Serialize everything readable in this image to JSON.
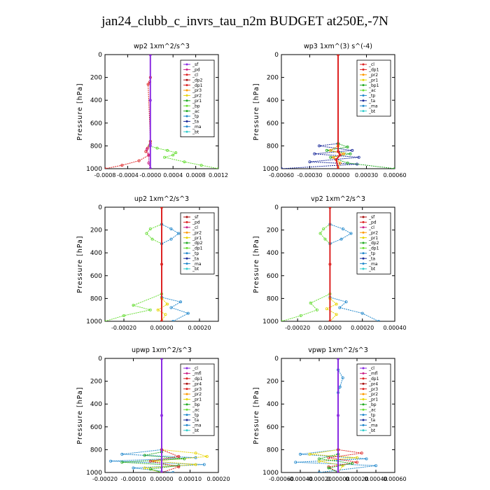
{
  "title": "jan24_clubb_c_invrs_tau_n2m  BUDGET at250E,-7N",
  "colors": {
    "purple": "#8a2be2",
    "magenta": "#cc2288",
    "red": "#dd2222",
    "orange": "#ff9900",
    "yellow": "#e8d400",
    "green": "#22aa22",
    "lime": "#66dd33",
    "blue": "#2288cc",
    "darkblue": "#1a2a9a",
    "cyan": "#33cccc",
    "darkred": "#aa1111"
  },
  "chart_data": [
    {
      "type": "line",
      "title": "wp2   1xm^2/s^3",
      "ylabel": "Pressure [hPa]",
      "ylim": [
        1000,
        0
      ],
      "yticks": [
        "0",
        "200",
        "400",
        "600",
        "800",
        "1000"
      ],
      "xlim": [
        -0.0008,
        0.0012
      ],
      "xticks": [
        -0.0008,
        -0.0004,
        0.0,
        0.0004,
        0.0008,
        0.0012
      ],
      "xtick_labels": [
        "-0.0008",
        "-0.0004",
        "-0.0000",
        "0.0004",
        "0.0008",
        "0.0012"
      ],
      "legend_position": "upper-right",
      "legend": [
        "_sf",
        "_pd",
        "_cl",
        "_dp2",
        "_dp1",
        "_pr3",
        "_pr2",
        "_pr1",
        "_bp",
        "_ac",
        "_tp",
        "_ta",
        "_ma",
        "_bt"
      ],
      "legend_colors": [
        "purple",
        "magenta",
        "red",
        "darkred",
        "red",
        "orange",
        "yellow",
        "green",
        "lime",
        "green",
        "blue",
        "darkblue",
        "blue",
        "cyan"
      ],
      "series": [
        {
          "color": "lime",
          "x": [
            0,
            0,
            -2e-05,
            0.00012,
            0.0003,
            0.00045,
            0.0004,
            0.00025,
            0.0006,
            0.0009,
            0.0012
          ],
          "y": [
            0,
            760,
            800,
            820,
            840,
            860,
            880,
            900,
            940,
            970,
            1000
          ]
        },
        {
          "color": "red",
          "x": [
            0,
            0,
            -1e-05,
            -4e-05,
            0,
            -5e-05,
            -8e-05,
            -2e-05,
            -0.0002,
            -0.0005,
            -0.0008
          ],
          "y": [
            0,
            200,
            240,
            260,
            760,
            820,
            850,
            880,
            930,
            970,
            1000
          ]
        },
        {
          "color": "magenta",
          "x": [
            0,
            0,
            -6e-05,
            -3e-05,
            -3e-05,
            0
          ],
          "y": [
            0,
            780,
            830,
            880,
            950,
            1000
          ]
        },
        {
          "color": "purple",
          "x": [
            0,
            0,
            0,
            0
          ],
          "y": [
            0,
            400,
            800,
            1000
          ]
        }
      ]
    },
    {
      "type": "line",
      "title": "wp3   1xm^(3) s^(-4)",
      "ylabel": "Pressure [hPa]",
      "ylim": [
        1000,
        0
      ],
      "yticks": [
        "0",
        "200",
        "400",
        "600",
        "800",
        "1000"
      ],
      "xlim": [
        -0.0006,
        0.0006
      ],
      "xticks": [
        -0.0006,
        -0.0003,
        0.0,
        0.0003,
        0.0006
      ],
      "xtick_labels": [
        "-0.00060",
        "-0.00030",
        "0.00000",
        "0.00030",
        "0.00060"
      ],
      "legend_position": "upper-right",
      "legend": [
        "_cl",
        "_dp1",
        "_pr2",
        "_pr1",
        "_bp1",
        "_ac",
        "_tp",
        "_ta",
        "_ma",
        "_bt"
      ],
      "legend_colors": [
        "red",
        "red",
        "orange",
        "yellow",
        "green",
        "lime",
        "blue",
        "darkblue",
        "blue",
        "cyan"
      ],
      "series": [
        {
          "color": "darkblue",
          "x": [
            0,
            0,
            -0.0002,
            0.00015,
            -0.00025,
            0.00022,
            -0.0003,
            0.0002,
            -0.0006
          ],
          "y": [
            0,
            780,
            800,
            840,
            870,
            900,
            940,
            960,
            1000
          ]
        },
        {
          "color": "green",
          "x": [
            0,
            0,
            0.0001,
            -0.00012,
            0.00013,
            -8e-05,
            0.0001,
            0.0006
          ],
          "y": [
            0,
            780,
            810,
            840,
            870,
            900,
            950,
            1000
          ]
        },
        {
          "color": "orange",
          "x": [
            0,
            0,
            -8e-05,
            6e-05,
            -5e-05,
            2e-05,
            0
          ],
          "y": [
            0,
            800,
            840,
            870,
            900,
            950,
            1000
          ]
        },
        {
          "color": "red",
          "x": [
            0,
            0,
            2e-05,
            -2e-05,
            0
          ],
          "y": [
            0,
            850,
            880,
            920,
            1000
          ]
        }
      ]
    },
    {
      "type": "line",
      "title": "up2   1xm^2/s^3",
      "ylabel": "Pressure [hPa]",
      "ylim": [
        1000,
        0
      ],
      "yticks": [
        "0",
        "200",
        "400",
        "600",
        "800",
        "1000"
      ],
      "xlim": [
        -0.0003,
        0.0003
      ],
      "xticks": [
        -0.0002,
        0.0,
        0.0002
      ],
      "xtick_labels": [
        "-0.00020",
        "0.00000",
        "0.00020"
      ],
      "legend_position": "upper-right",
      "legend": [
        "_sf",
        "_pd",
        "_cl",
        "_pr2",
        "_pr1",
        "_dp2",
        "_dp1",
        "_tp",
        "_ta",
        "_ma",
        "_bt"
      ],
      "legend_colors": [
        "darkred",
        "red",
        "magenta",
        "orange",
        "yellow",
        "green",
        "lime",
        "blue",
        "darkblue",
        "blue",
        "cyan"
      ],
      "series": [
        {
          "color": "lime",
          "x": [
            0,
            0,
            -6e-05,
            -8e-05,
            -5e-05,
            0,
            0,
            -0.00015,
            -6e-05,
            -0.0002,
            -0.0003
          ],
          "y": [
            0,
            150,
            190,
            230,
            280,
            320,
            760,
            860,
            900,
            950,
            1000
          ]
        },
        {
          "color": "blue",
          "x": [
            0,
            0,
            5e-05,
            9e-05,
            5e-05,
            0,
            0,
            0.0001,
            5e-05,
            0.00014,
            6e-05
          ],
          "y": [
            0,
            150,
            190,
            230,
            280,
            320,
            790,
            830,
            880,
            930,
            1000
          ]
        },
        {
          "color": "yellow",
          "x": [
            0,
            0,
            3e-05,
            -2e-05,
            2e-05,
            0
          ],
          "y": [
            0,
            800,
            850,
            900,
            940,
            1000
          ]
        },
        {
          "color": "red",
          "x": [
            0,
            0,
            0
          ],
          "y": [
            0,
            500,
            1000
          ]
        }
      ]
    },
    {
      "type": "line",
      "title": "vp2   1xm^2/s^3",
      "ylabel": "Pressure [hPa]",
      "ylim": [
        1000,
        0
      ],
      "yticks": [
        "0",
        "200",
        "400",
        "600",
        "800",
        "1000"
      ],
      "xlim": [
        -0.0003,
        0.0004
      ],
      "xticks": [
        -0.0002,
        0.0,
        0.0002,
        0.0004
      ],
      "xtick_labels": [
        "-0.00020",
        "0.00000",
        "0.00020",
        "0.00040"
      ],
      "legend_position": "upper-right",
      "legend": [
        "_sf",
        "_pd",
        "_cl",
        "_pr2",
        "_pr1",
        "_dp2",
        "_dp1",
        "_tp",
        "_ta",
        "_ma",
        "_bt"
      ],
      "legend_colors": [
        "darkred",
        "red",
        "magenta",
        "orange",
        "yellow",
        "green",
        "lime",
        "blue",
        "darkblue",
        "blue",
        "cyan"
      ],
      "series": [
        {
          "color": "lime",
          "x": [
            0,
            0,
            -4e-05,
            -6e-05,
            -3e-05,
            0,
            0,
            -0.00012,
            -8e-05,
            -0.00018,
            -0.0003
          ],
          "y": [
            0,
            150,
            190,
            230,
            280,
            320,
            760,
            840,
            900,
            950,
            1000
          ]
        },
        {
          "color": "blue",
          "x": [
            0,
            0,
            8e-05,
            0.00013,
            7e-05,
            0,
            0,
            0.0001,
            6e-05,
            0.0002,
            0.0003
          ],
          "y": [
            0,
            150,
            190,
            230,
            280,
            320,
            790,
            830,
            880,
            930,
            1000
          ]
        },
        {
          "color": "yellow",
          "x": [
            0,
            0,
            4e-05,
            -2e-05,
            4e-05,
            0
          ],
          "y": [
            0,
            800,
            850,
            890,
            940,
            1000
          ]
        },
        {
          "color": "red",
          "x": [
            0,
            0,
            0
          ],
          "y": [
            0,
            500,
            1000
          ]
        }
      ]
    },
    {
      "type": "line",
      "title": "upwp   1xm^2/s^3",
      "ylabel": "Pressure [hPa]",
      "ylim": [
        1000,
        0
      ],
      "yticks": [
        "0",
        "200",
        "400",
        "600",
        "800",
        "1000"
      ],
      "xlim": [
        -0.0002,
        0.0002
      ],
      "xticks": [
        -0.0002,
        -0.0001,
        0.0,
        0.0001,
        0.0002
      ],
      "xtick_labels": [
        "-0.00020",
        "-0.00010",
        "0.00000",
        "0.00010",
        "0.00020"
      ],
      "legend_position": "upper-right",
      "legend": [
        "_cl",
        "_mfl",
        "_dp1",
        "_pr4",
        "_pr3",
        "_pr2",
        "_pr1",
        "_bp",
        "_ac",
        "_tp",
        "_ta",
        "_ma",
        "_bt"
      ],
      "legend_colors": [
        "purple",
        "magenta",
        "red",
        "darkred",
        "red",
        "orange",
        "yellow",
        "green",
        "lime",
        "blue",
        "darkblue",
        "blue",
        "cyan"
      ],
      "series": [
        {
          "color": "blue",
          "x": [
            0,
            0,
            -0.00014,
            0.00012,
            -0.00018,
            0.00015,
            -0.0001,
            4e-05
          ],
          "y": [
            0,
            800,
            840,
            870,
            900,
            930,
            960,
            1000
          ]
        },
        {
          "color": "yellow",
          "x": [
            0,
            0,
            0.00012,
            0.00016,
            -3e-05,
            0.00012,
            -6e-05,
            0
          ],
          "y": [
            0,
            800,
            830,
            860,
            900,
            930,
            960,
            1000
          ]
        },
        {
          "color": "green",
          "x": [
            0,
            0,
            -6e-05,
            8e-05,
            -0.00014,
            6e-05,
            -4e-05,
            0
          ],
          "y": [
            0,
            820,
            850,
            880,
            910,
            940,
            970,
            1000
          ]
        },
        {
          "color": "red",
          "x": [
            0,
            0,
            6e-05,
            -4e-05,
            6e-05,
            0
          ],
          "y": [
            0,
            800,
            860,
            900,
            950,
            1000
          ]
        },
        {
          "color": "purple",
          "x": [
            0,
            0,
            0
          ],
          "y": [
            0,
            500,
            1000
          ]
        }
      ]
    },
    {
      "type": "line",
      "title": "vpwp   1xm^2/s^3",
      "ylabel": "Pressure [hPa]",
      "ylim": [
        1000,
        0
      ],
      "yticks": [
        "0",
        "200",
        "400",
        "600",
        "800",
        "1000"
      ],
      "xlim": [
        -0.0006,
        0.0006
      ],
      "xticks": [
        -0.0006,
        -0.0004,
        -0.0002,
        0.0,
        0.0002,
        0.0004,
        0.0006
      ],
      "xtick_labels": [
        "-0.00060",
        "-0.00040",
        "-0.00020",
        "0.00000",
        "0.00020",
        "0.00040",
        "0.00060"
      ],
      "legend_position": "upper-right",
      "legend": [
        "_cl",
        "_mfl",
        "_dp1",
        "_pr4",
        "_pr3",
        "_pr2",
        "_pr1",
        "_bp",
        "_ac",
        "_tp",
        "_ta",
        "_ma",
        "_bt"
      ],
      "legend_colors": [
        "purple",
        "magenta",
        "red",
        "darkred",
        "red",
        "orange",
        "yellow",
        "green",
        "lime",
        "blue",
        "darkblue",
        "blue",
        "cyan"
      ],
      "series": [
        {
          "color": "blue",
          "x": [
            0,
            0,
            5e-05,
            2e-05,
            0,
            0,
            -0.0004,
            0.0003,
            -0.00045,
            0.0004,
            -0.0002
          ],
          "y": [
            0,
            100,
            170,
            250,
            300,
            800,
            840,
            880,
            910,
            940,
            1000
          ]
        },
        {
          "color": "yellow",
          "x": [
            0,
            0,
            -0.0003,
            0.0002,
            -0.0002,
            5e-05,
            0
          ],
          "y": [
            0,
            800,
            840,
            870,
            900,
            940,
            1000
          ]
        },
        {
          "color": "red",
          "x": [
            0,
            0,
            0.00025,
            -0.0001,
            0.0002,
            -0.0001,
            0
          ],
          "y": [
            0,
            800,
            830,
            870,
            910,
            950,
            1000
          ]
        },
        {
          "color": "green",
          "x": [
            0,
            0,
            -0.0002,
            0.00015,
            -0.0001,
            0
          ],
          "y": [
            0,
            840,
            880,
            920,
            960,
            1000
          ]
        },
        {
          "color": "purple",
          "x": [
            0,
            0,
            0
          ],
          "y": [
            0,
            500,
            1000
          ]
        }
      ]
    }
  ]
}
